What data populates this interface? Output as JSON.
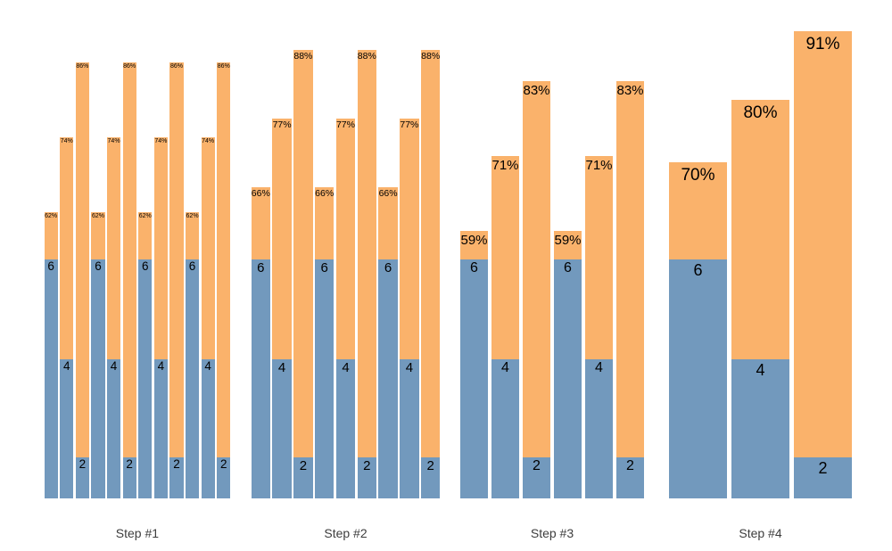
{
  "chart_data": {
    "type": "bar",
    "subtype": "grouped-stacked-columns",
    "background": "#FFFFFF",
    "grid": false,
    "legend": false,
    "series_colors": {
      "bottom_segment": "#7299BD",
      "top_segment": "#FAB26B"
    },
    "label_color": "#000000",
    "axis_label_color": "#3D3D3D",
    "groups": [
      {
        "label": "Step #1",
        "bars": [
          {
            "count": 6,
            "count_label": "6",
            "pct": 62,
            "pct_label": "62%"
          },
          {
            "count": 4,
            "count_label": "4",
            "pct": 74,
            "pct_label": "74%"
          },
          {
            "count": 2,
            "count_label": "2",
            "pct": 86,
            "pct_label": "86%"
          },
          {
            "count": 6,
            "count_label": "6",
            "pct": 62,
            "pct_label": "62%"
          },
          {
            "count": 4,
            "count_label": "4",
            "pct": 74,
            "pct_label": "74%"
          },
          {
            "count": 2,
            "count_label": "2",
            "pct": 86,
            "pct_label": "86%"
          },
          {
            "count": 6,
            "count_label": "6",
            "pct": 62,
            "pct_label": "62%"
          },
          {
            "count": 4,
            "count_label": "4",
            "pct": 74,
            "pct_label": "74%"
          },
          {
            "count": 2,
            "count_label": "2",
            "pct": 86,
            "pct_label": "86%"
          },
          {
            "count": 6,
            "count_label": "6",
            "pct": 62,
            "pct_label": "62%"
          },
          {
            "count": 4,
            "count_label": "4",
            "pct": 74,
            "pct_label": "74%"
          },
          {
            "count": 2,
            "count_label": "2",
            "pct": 86,
            "pct_label": "86%"
          }
        ]
      },
      {
        "label": "Step #2",
        "bars": [
          {
            "count": 6,
            "count_label": "6",
            "pct": 66,
            "pct_label": "66%"
          },
          {
            "count": 4,
            "count_label": "4",
            "pct": 77,
            "pct_label": "77%"
          },
          {
            "count": 2,
            "count_label": "2",
            "pct": 88,
            "pct_label": "88%"
          },
          {
            "count": 6,
            "count_label": "6",
            "pct": 66,
            "pct_label": "66%"
          },
          {
            "count": 4,
            "count_label": "4",
            "pct": 77,
            "pct_label": "77%"
          },
          {
            "count": 2,
            "count_label": "2",
            "pct": 88,
            "pct_label": "88%"
          },
          {
            "count": 6,
            "count_label": "6",
            "pct": 66,
            "pct_label": "66%"
          },
          {
            "count": 4,
            "count_label": "4",
            "pct": 77,
            "pct_label": "77%"
          },
          {
            "count": 2,
            "count_label": "2",
            "pct": 88,
            "pct_label": "88%"
          }
        ]
      },
      {
        "label": "Step #3",
        "bars": [
          {
            "count": 6,
            "count_label": "6",
            "pct": 59,
            "pct_label": "59%"
          },
          {
            "count": 4,
            "count_label": "4",
            "pct": 71,
            "pct_label": "71%"
          },
          {
            "count": 2,
            "count_label": "2",
            "pct": 83,
            "pct_label": "83%"
          },
          {
            "count": 6,
            "count_label": "6",
            "pct": 59,
            "pct_label": "59%"
          },
          {
            "count": 4,
            "count_label": "4",
            "pct": 71,
            "pct_label": "71%"
          },
          {
            "count": 2,
            "count_label": "2",
            "pct": 83,
            "pct_label": "83%"
          }
        ]
      },
      {
        "label": "Step #4",
        "bars": [
          {
            "count": 6,
            "count_label": "6",
            "pct": 70,
            "pct_label": "70%"
          },
          {
            "count": 4,
            "count_label": "4",
            "pct": 80,
            "pct_label": "80%"
          },
          {
            "count": 2,
            "count_label": "2",
            "pct": 91,
            "pct_label": "91%"
          }
        ]
      }
    ]
  }
}
